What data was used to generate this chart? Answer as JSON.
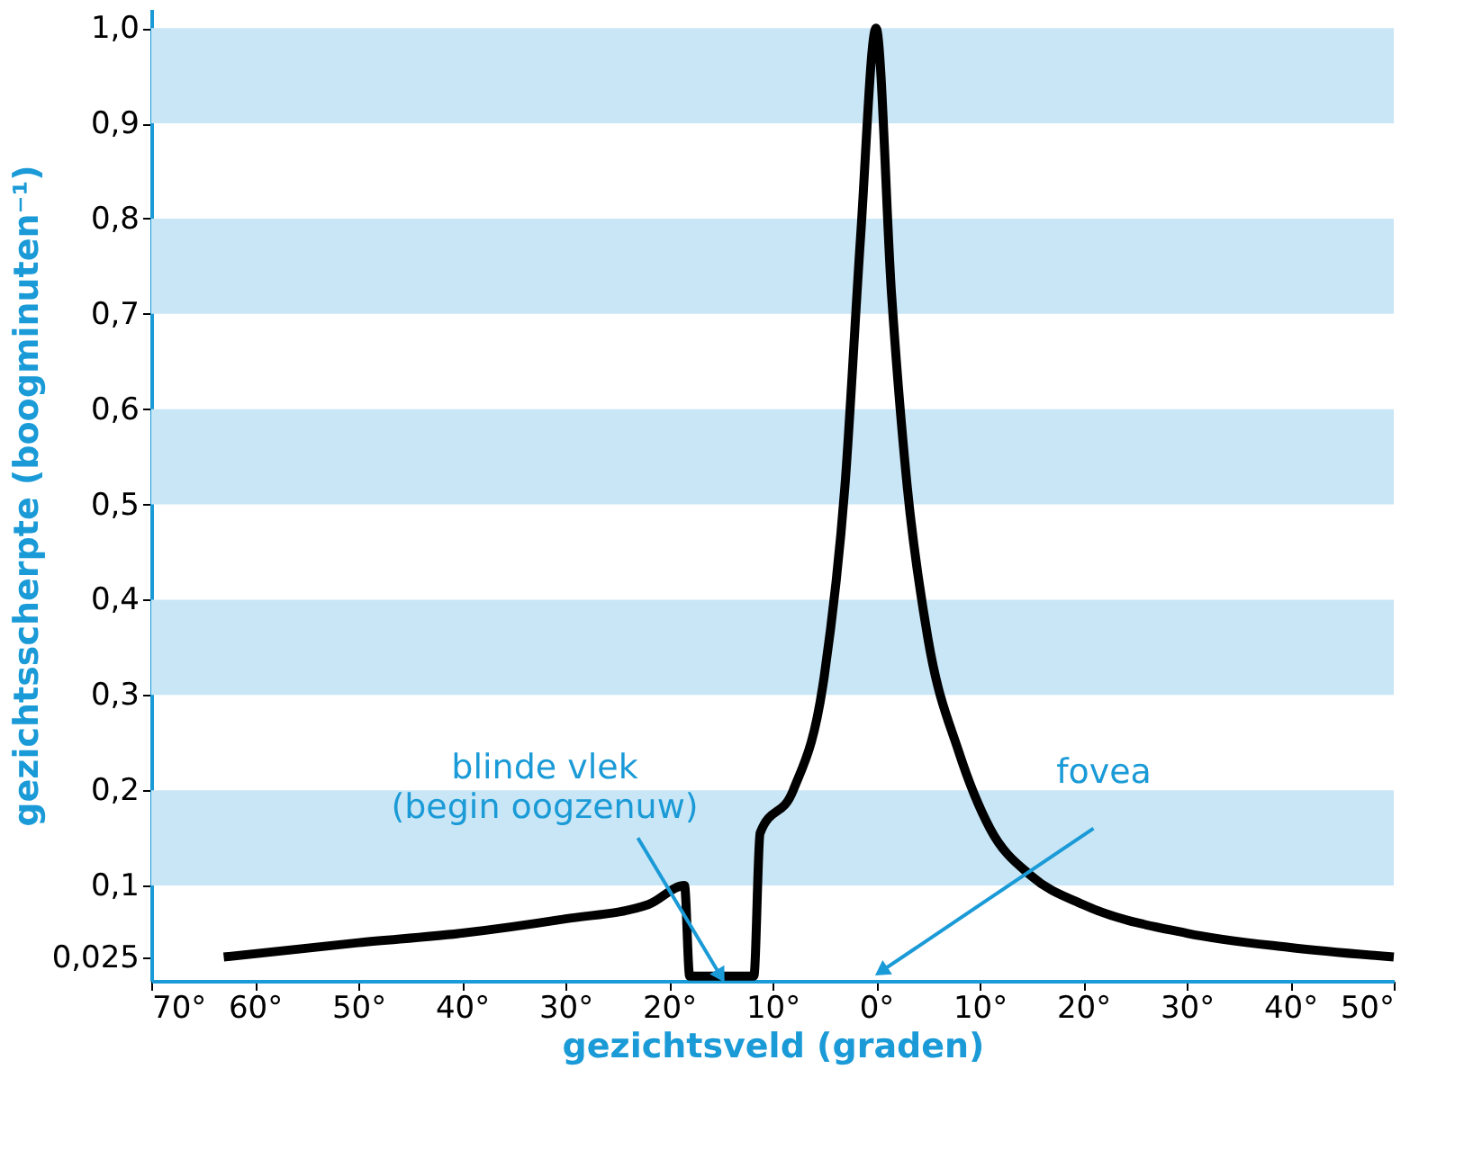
{
  "chart_data": {
    "type": "line",
    "xlabel": "gezichtsveld (graden)",
    "ylabel": "gezichtsscherpte (boogminuten⁻¹)",
    "x": [
      -63,
      -50,
      -40,
      -30,
      -22,
      -18.5,
      -18,
      -11.8,
      -11.2,
      -8,
      -5,
      -3,
      -1.5,
      0,
      1.5,
      3,
      5,
      8,
      11,
      15,
      20,
      30,
      40,
      50
    ],
    "series": [
      {
        "color": "#000000",
        "values": [
          0.025,
          0.04,
          0.05,
          0.065,
          0.08,
          0.1,
          0.005,
          0.005,
          0.155,
          0.2,
          0.32,
          0.52,
          0.78,
          1.0,
          0.72,
          0.52,
          0.36,
          0.24,
          0.16,
          0.11,
          0.08,
          0.05,
          0.035,
          0.025
        ]
      }
    ],
    "xlim": [
      -70,
      50
    ],
    "ylim": [
      0,
      1.02
    ],
    "xticks": [
      {
        "value": -70,
        "label": "70°"
      },
      {
        "value": -60,
        "label": "60°"
      },
      {
        "value": -50,
        "label": "50°"
      },
      {
        "value": -40,
        "label": "40°"
      },
      {
        "value": -30,
        "label": "30°"
      },
      {
        "value": -20,
        "label": "20°"
      },
      {
        "value": -10,
        "label": "10°"
      },
      {
        "value": 0,
        "label": "0°"
      },
      {
        "value": 10,
        "label": "10°"
      },
      {
        "value": 20,
        "label": "20°"
      },
      {
        "value": 30,
        "label": "30°"
      },
      {
        "value": 40,
        "label": "40°"
      },
      {
        "value": 50,
        "label": "50°"
      }
    ],
    "yticks": [
      {
        "value": 0.025,
        "label": "0,025"
      },
      {
        "value": 0.1,
        "label": "0,1"
      },
      {
        "value": 0.2,
        "label": "0,2"
      },
      {
        "value": 0.3,
        "label": "0,3"
      },
      {
        "value": 0.4,
        "label": "0,4"
      },
      {
        "value": 0.5,
        "label": "0,5"
      },
      {
        "value": 0.6,
        "label": "0,6"
      },
      {
        "value": 0.7,
        "label": "0,7"
      },
      {
        "value": 0.8,
        "label": "0,8"
      },
      {
        "value": 0.9,
        "label": "0,9"
      },
      {
        "value": 1.0,
        "label": "1,0"
      }
    ],
    "bands": [
      {
        "axis": "y",
        "from": 0.1,
        "to": 0.2,
        "color": "#c8e6f6"
      },
      {
        "axis": "y",
        "from": 0.3,
        "to": 0.4,
        "color": "#c8e6f6"
      },
      {
        "axis": "y",
        "from": 0.5,
        "to": 0.6,
        "color": "#c8e6f6"
      },
      {
        "axis": "y",
        "from": 0.7,
        "to": 0.8,
        "color": "#c8e6f6"
      },
      {
        "axis": "y",
        "from": 0.9,
        "to": 1.0,
        "color": "#c8e6f6"
      }
    ],
    "annotations": [
      {
        "text": "blinde vlek\n(begin oogzenuw)",
        "x": -15,
        "y": 0.005
      },
      "fovea"
    ],
    "grid": false,
    "marker": "none",
    "line_style": "solid"
  }
}
